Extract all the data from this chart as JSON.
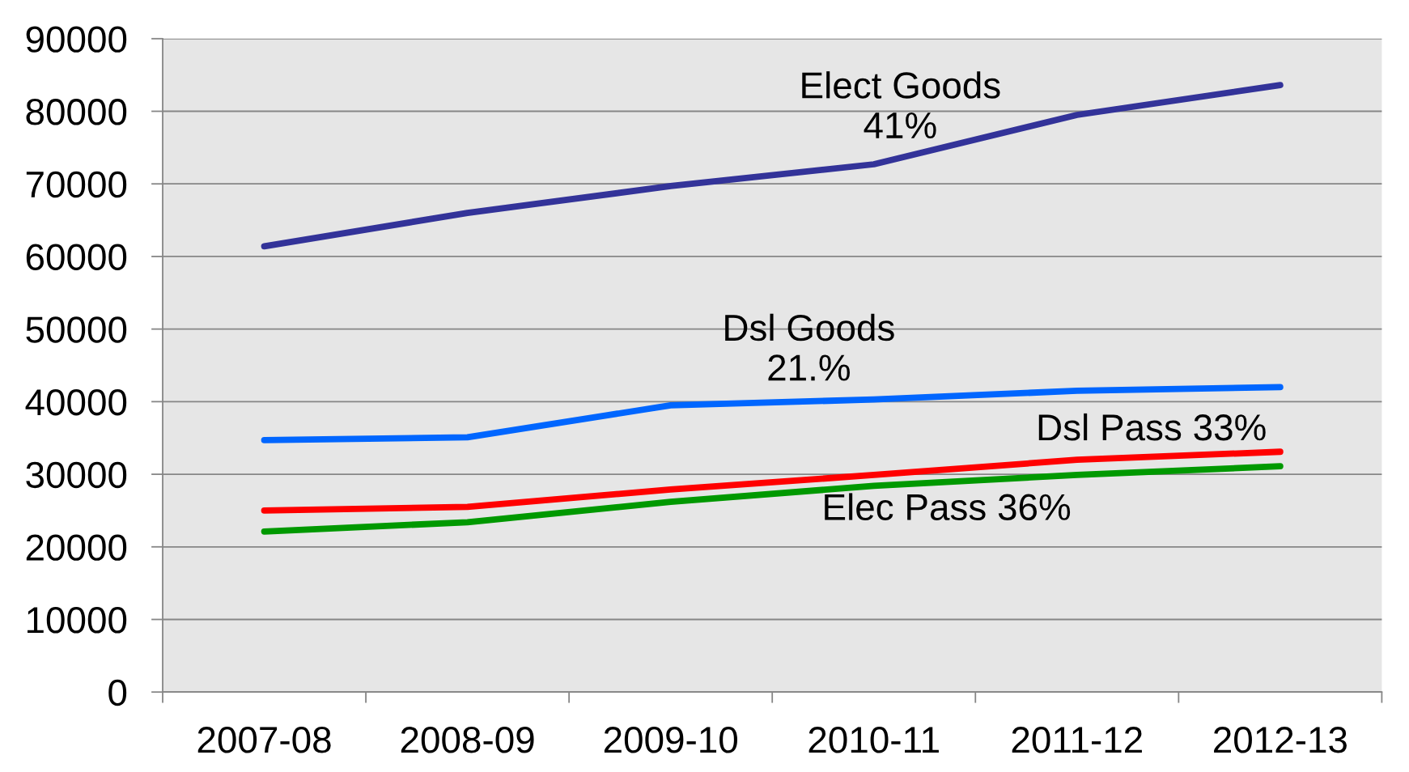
{
  "chart_data": {
    "type": "line",
    "categories": [
      "2007-08",
      "2008-09",
      "2009-10",
      "2010-11",
      "2011-12",
      "2012-13"
    ],
    "series": [
      {
        "name": "Elect Goods\n41%",
        "color": "#333399",
        "values": [
          61400,
          66000,
          69700,
          72700,
          79500,
          83600
        ]
      },
      {
        "name": "Dsl Goods\n21.%",
        "color": "#0066ff",
        "values": [
          34700,
          35100,
          39500,
          40300,
          41500,
          42000
        ]
      },
      {
        "name": "Dsl Pass 33%",
        "color": "#ff0000",
        "values": [
          25000,
          25500,
          27900,
          29900,
          32000,
          33100
        ]
      },
      {
        "name": "Elec Pass 36%",
        "color": "#009900",
        "values": [
          22100,
          23400,
          26200,
          28400,
          29900,
          31100
        ]
      }
    ],
    "ylim": [
      0,
      90000
    ],
    "yticks": [
      0,
      10000,
      20000,
      30000,
      40000,
      50000,
      60000,
      70000,
      80000,
      90000
    ],
    "grid": "y",
    "line_style": "solid"
  }
}
